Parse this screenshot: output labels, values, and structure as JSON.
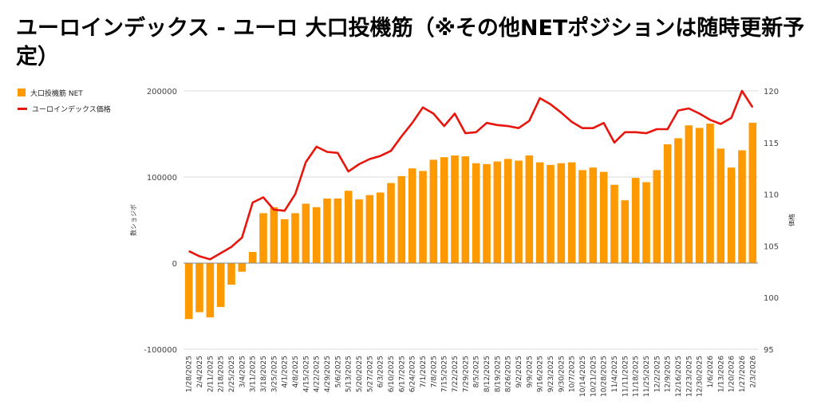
{
  "title": "ユーロインデックス - ユーロ 大口投機筋（※その他NETポジションは随時更新予定）",
  "colors": {
    "bar": "#ff9900",
    "line": "#e8150c",
    "grid": "#d9d9d9",
    "zero": "#888888"
  },
  "chart_data": {
    "type": "bar",
    "legend_position": "top-left",
    "grid": true,
    "ylabel": "数ショジボ",
    "y2label": "価格",
    "ylim": [
      -100000,
      200000
    ],
    "y2lim": [
      95,
      120
    ],
    "yticks": [
      "200000",
      "100000",
      "0",
      "-100000"
    ],
    "y2ticks": [
      "120",
      "115",
      "110",
      "105",
      "100",
      "95"
    ],
    "x": [
      "1/28/2025",
      "2/4/2025",
      "2/11/2025",
      "2/18/2025",
      "2/25/2025",
      "3/4/2025",
      "3/11/2025",
      "3/18/2025",
      "3/25/2025",
      "4/1/2025",
      "4/8/2025",
      "4/15/2025",
      "4/22/2025",
      "4/29/2025",
      "5/6/2025",
      "5/13/2025",
      "5/20/2025",
      "5/27/2025",
      "6/3/2025",
      "6/10/2025",
      "6/17/2025",
      "6/24/2025",
      "7/1/2025",
      "7/8/2025",
      "7/15/2025",
      "7/22/2025",
      "7/29/2025",
      "8/5/2025",
      "8/12/2025",
      "8/19/2025",
      "8/26/2025",
      "9/2/2025",
      "9/9/2025",
      "9/16/2025",
      "9/23/2025",
      "9/30/2025",
      "10/7/2025",
      "10/14/2025",
      "10/21/2025",
      "10/28/2025",
      "11/4/2025",
      "11/11/2025",
      "11/18/2025",
      "11/25/2025",
      "12/2/2025",
      "12/9/2025",
      "12/16/2025",
      "12/23/2025",
      "12/30/2025",
      "1/6/2026",
      "1/13/2026",
      "1/20/2026",
      "1/27/2026",
      "2/3/2026"
    ],
    "series": [
      {
        "name": "大口投機筋  NET",
        "type": "bar",
        "axis": "left",
        "values": [
          -65000,
          -57000,
          -63000,
          -51000,
          -25000,
          -10000,
          13000,
          58000,
          65000,
          51000,
          58000,
          69000,
          65000,
          75000,
          75000,
          84000,
          74000,
          79000,
          82000,
          93000,
          101000,
          110000,
          107000,
          120000,
          123000,
          125000,
          124000,
          116000,
          115000,
          118000,
          121000,
          119000,
          125000,
          117000,
          114000,
          116000,
          117000,
          108000,
          111000,
          106000,
          91000,
          73000,
          99000,
          94000,
          108000,
          138000,
          145000,
          160000,
          157000,
          162000,
          133000,
          111000,
          131000,
          163000
        ]
      },
      {
        "name": "ユーロインデックス価格",
        "type": "line",
        "axis": "right",
        "values": [
          104.5,
          104.0,
          103.7,
          104.3,
          104.9,
          105.8,
          109.2,
          109.7,
          108.5,
          108.4,
          110.0,
          113.1,
          114.6,
          114.1,
          114.0,
          112.2,
          112.9,
          113.4,
          113.7,
          114.2,
          115.6,
          116.9,
          118.4,
          117.8,
          116.6,
          117.8,
          115.9,
          116.0,
          116.9,
          116.7,
          116.6,
          116.4,
          117.1,
          119.3,
          118.7,
          117.9,
          117.0,
          116.4,
          116.4,
          116.9,
          115.0,
          116.0,
          116.0,
          115.9,
          116.3,
          116.3,
          118.1,
          118.3,
          117.8,
          117.2,
          116.8,
          117.4,
          120.0,
          118.4
        ]
      }
    ]
  }
}
